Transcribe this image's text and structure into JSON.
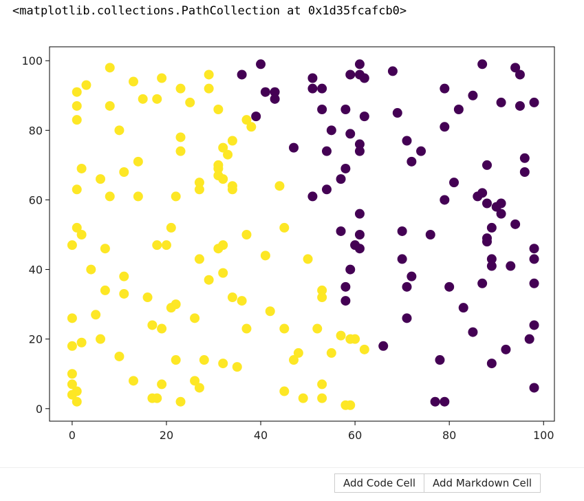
{
  "output_text": "<matplotlib.collections.PathCollection at 0x1d35fcafcb0>",
  "buttons": [
    "Add Code Cell",
    "Add Markdown Cell"
  ],
  "chart_data": {
    "type": "scatter",
    "xlim": [
      -4.8,
      102.3
    ],
    "ylim": [
      -3.6,
      104.0
    ],
    "xticks": [
      0,
      20,
      40,
      60,
      80,
      100
    ],
    "yticks": [
      0,
      20,
      40,
      60,
      80,
      100
    ],
    "series": [
      {
        "color": "#fde725",
        "x": [
          1,
          1,
          1,
          3,
          8,
          8,
          13,
          15,
          18,
          19,
          23,
          25,
          29,
          29,
          31,
          10,
          2,
          1,
          6,
          8,
          11,
          14,
          14,
          23,
          23,
          22,
          27,
          27,
          32,
          34,
          33,
          31,
          31,
          31,
          32,
          34,
          34,
          37,
          38,
          44,
          1,
          2,
          0,
          7,
          21,
          18,
          20,
          27,
          31,
          32,
          37,
          41,
          45,
          4,
          11,
          11,
          7,
          16,
          22,
          21,
          29,
          32,
          34,
          36,
          50,
          0,
          5,
          0,
          2,
          6,
          17,
          19,
          26,
          37,
          42,
          45,
          52,
          53,
          53,
          10,
          22,
          28,
          32,
          35,
          47,
          48,
          55,
          57,
          59,
          60,
          62,
          0,
          0,
          1,
          0,
          1,
          13,
          19,
          17,
          18,
          23,
          26,
          27,
          45,
          49,
          53,
          53,
          58,
          59
        ],
        "values": [
          91,
          87,
          83,
          93,
          98,
          87,
          94,
          89,
          89,
          95,
          92,
          88,
          96,
          92,
          86,
          80,
          69,
          63,
          66,
          61,
          68,
          71,
          61,
          78,
          74,
          61,
          65,
          63,
          75,
          77,
          73,
          70,
          69,
          67,
          66,
          64,
          63,
          83,
          81,
          64,
          52,
          50,
          47,
          46,
          52,
          47,
          47,
          43,
          46,
          47,
          50,
          44,
          52,
          40,
          38,
          33,
          34,
          32,
          30,
          29,
          37,
          39,
          32,
          31,
          43,
          26,
          27,
          18,
          19,
          20,
          24,
          23,
          26,
          23,
          28,
          23,
          23,
          34,
          32,
          15,
          14,
          14,
          13,
          12,
          14,
          16,
          16,
          21,
          20,
          20,
          17,
          10,
          7,
          5,
          4,
          2,
          8,
          7,
          3,
          3,
          2,
          8,
          6,
          5,
          3,
          7,
          3,
          1,
          1
        ]
      },
      {
        "color": "#440154",
        "x": [
          36,
          40,
          41,
          43,
          43,
          39,
          51,
          51,
          53,
          53,
          58,
          59,
          61,
          61,
          62,
          62,
          55,
          59,
          61,
          61,
          54,
          47,
          68,
          69,
          71,
          74,
          72,
          79,
          79,
          82,
          85,
          87,
          91,
          94,
          95,
          95,
          98,
          96,
          96,
          88,
          81,
          58,
          57,
          54,
          51,
          79,
          86,
          87,
          88,
          90,
          91,
          91,
          94,
          89,
          88,
          88,
          98,
          98,
          89,
          89,
          93,
          61,
          57,
          61,
          60,
          61,
          59,
          58,
          58,
          70,
          70,
          72,
          71,
          76,
          80,
          87,
          98,
          71,
          83,
          85,
          66,
          78,
          89,
          92,
          97,
          98,
          98,
          77,
          79
        ],
        "values": [
          96,
          99,
          91,
          91,
          89,
          84,
          95,
          92,
          92,
          86,
          86,
          96,
          99,
          96,
          95,
          84,
          80,
          79,
          76,
          74,
          74,
          75,
          97,
          85,
          77,
          74,
          71,
          92,
          81,
          86,
          90,
          99,
          88,
          98,
          96,
          87,
          88,
          72,
          68,
          70,
          65,
          69,
          66,
          63,
          61,
          60,
          61,
          62,
          59,
          58,
          59,
          56,
          53,
          52,
          49,
          48,
          46,
          43,
          43,
          41,
          41,
          56,
          51,
          50,
          47,
          46,
          40,
          35,
          31,
          51,
          43,
          38,
          35,
          50,
          35,
          36,
          36,
          26,
          29,
          22,
          18,
          14,
          13,
          17,
          20,
          24,
          6,
          2,
          2
        ]
      }
    ]
  }
}
